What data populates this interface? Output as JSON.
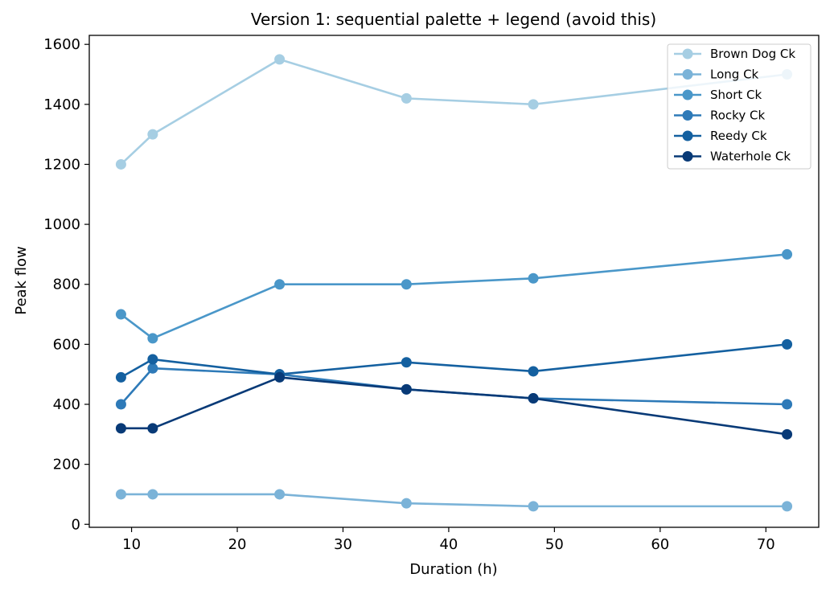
{
  "chart_data": {
    "type": "line",
    "title": "Version 1: sequential palette + legend (avoid this)",
    "xlabel": "Duration (h)",
    "ylabel": "Peak flow",
    "xlim": [
      6,
      75
    ],
    "ylim": [
      -10,
      1630
    ],
    "xticks": [
      10,
      20,
      30,
      40,
      50,
      60,
      70
    ],
    "yticks": [
      0,
      200,
      400,
      600,
      800,
      1000,
      1200,
      1400,
      1600
    ],
    "grid": false,
    "legend_position": "top-right",
    "x": [
      9,
      12,
      24,
      36,
      48,
      72
    ],
    "series": [
      {
        "name": "Brown Dog Ck",
        "color": "#a6cee3",
        "values": [
          1200,
          1300,
          1550,
          1420,
          1400,
          1500
        ]
      },
      {
        "name": "Long Ck",
        "color": "#7bb3d8",
        "values": [
          100,
          100,
          100,
          70,
          60,
          60
        ]
      },
      {
        "name": "Short Ck",
        "color": "#4a97c9",
        "values": [
          700,
          620,
          800,
          800,
          820,
          900
        ]
      },
      {
        "name": "Rocky Ck",
        "color": "#2e7ab8",
        "values": [
          400,
          520,
          500,
          450,
          420,
          400
        ]
      },
      {
        "name": "Reedy Ck",
        "color": "#1460a0",
        "values": [
          490,
          550,
          500,
          540,
          510,
          600
        ]
      },
      {
        "name": "Waterhole Ck",
        "color": "#083a77",
        "values": [
          320,
          320,
          490,
          450,
          420,
          300
        ]
      }
    ]
  }
}
